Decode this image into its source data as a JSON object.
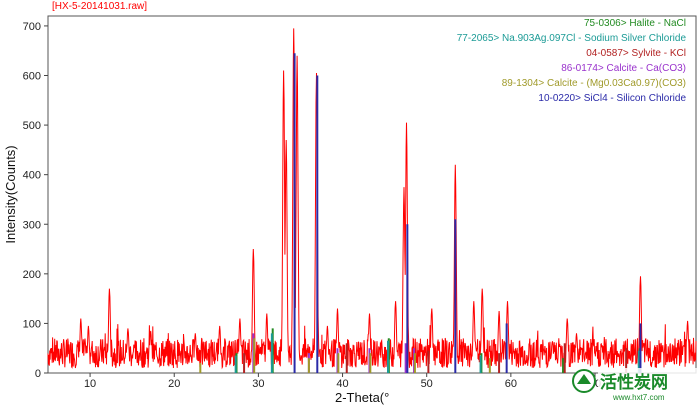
{
  "chart_data": {
    "type": "line",
    "title": "[HX-5-20141031.raw]",
    "xlabel": "2-Theta(°",
    "ylabel": "Intensity(Counts)",
    "xlim": [
      5,
      82
    ],
    "ylim": [
      0,
      720
    ],
    "xticks": [
      10,
      20,
      30,
      40,
      50,
      60,
      70
    ],
    "yticks": [
      0,
      100,
      200,
      300,
      400,
      500,
      600,
      700
    ],
    "grid": false,
    "legend_position": "top-right",
    "series": [
      {
        "color": "#ff0000",
        "baseline": 40,
        "peaks": [
          {
            "x": 8.9,
            "y": 110
          },
          {
            "x": 9.8,
            "y": 95
          },
          {
            "x": 12.3,
            "y": 170
          },
          {
            "x": 14.5,
            "y": 90
          },
          {
            "x": 17.2,
            "y": 85
          },
          {
            "x": 22.5,
            "y": 80
          },
          {
            "x": 25.4,
            "y": 95
          },
          {
            "x": 27.8,
            "y": 110
          },
          {
            "x": 29.4,
            "y": 250
          },
          {
            "x": 31.0,
            "y": 120
          },
          {
            "x": 33.0,
            "y": 610
          },
          {
            "x": 33.3,
            "y": 470
          },
          {
            "x": 34.2,
            "y": 695
          },
          {
            "x": 34.6,
            "y": 640
          },
          {
            "x": 36.9,
            "y": 605
          },
          {
            "x": 38.2,
            "y": 95
          },
          {
            "x": 39.4,
            "y": 130
          },
          {
            "x": 43.2,
            "y": 120
          },
          {
            "x": 46.3,
            "y": 145
          },
          {
            "x": 47.3,
            "y": 375
          },
          {
            "x": 47.6,
            "y": 505
          },
          {
            "x": 50.6,
            "y": 130
          },
          {
            "x": 53.4,
            "y": 420
          },
          {
            "x": 55.6,
            "y": 145
          },
          {
            "x": 56.6,
            "y": 170
          },
          {
            "x": 58.6,
            "y": 125
          },
          {
            "x": 59.6,
            "y": 145
          },
          {
            "x": 66.7,
            "y": 110
          },
          {
            "x": 67.8,
            "y": 80
          },
          {
            "x": 75.4,
            "y": 195
          },
          {
            "x": 81.0,
            "y": 105
          }
        ]
      }
    ],
    "reference_patterns": [
      {
        "label": "75-0306> Halite - NaCl",
        "color": "#228b22",
        "sticks": [
          {
            "x": 27.4,
            "y": 40
          },
          {
            "x": 31.7,
            "y": 90
          },
          {
            "x": 45.5,
            "y": 70
          },
          {
            "x": 56.5,
            "y": 40
          },
          {
            "x": 66.2,
            "y": 30
          },
          {
            "x": 75.3,
            "y": 50
          }
        ]
      },
      {
        "label": "77-2065> Na.903Ag.097Cl - Sodium Silver Chloride",
        "color": "#1c9b96",
        "sticks": [
          {
            "x": 27.3,
            "y": 35
          },
          {
            "x": 31.6,
            "y": 80
          },
          {
            "x": 45.4,
            "y": 65
          },
          {
            "x": 56.4,
            "y": 35
          },
          {
            "x": 75.2,
            "y": 45
          }
        ]
      },
      {
        "label": "04-0587> Sylvite - KCl",
        "color": "#b22222",
        "sticks": [
          {
            "x": 28.3,
            "y": 40
          },
          {
            "x": 40.5,
            "y": 60
          },
          {
            "x": 50.2,
            "y": 45
          },
          {
            "x": 58.6,
            "y": 40
          },
          {
            "x": 66.4,
            "y": 60
          },
          {
            "x": 73.7,
            "y": 50
          }
        ]
      },
      {
        "label": "86-0174> Calcite - Ca(CO3)",
        "color": "#9932cc",
        "sticks": [
          {
            "x": 29.4,
            "y": 80
          },
          {
            "x": 36.0,
            "y": 40
          },
          {
            "x": 39.4,
            "y": 50
          },
          {
            "x": 43.2,
            "y": 50
          },
          {
            "x": 47.5,
            "y": 60
          },
          {
            "x": 48.5,
            "y": 50
          }
        ]
      },
      {
        "label": "89-1304> Calcite - (Mg0.03Ca0.97)(CO3)",
        "color": "#a09a2a",
        "sticks": [
          {
            "x": 23.1,
            "y": 20
          },
          {
            "x": 29.5,
            "y": 70
          },
          {
            "x": 36.0,
            "y": 30
          },
          {
            "x": 39.5,
            "y": 40
          },
          {
            "x": 43.3,
            "y": 40
          },
          {
            "x": 48.6,
            "y": 40
          },
          {
            "x": 57.5,
            "y": 30
          }
        ]
      },
      {
        "label": "10-0220> SiCl4 - Silicon Chloride",
        "color": "#2a2aa8",
        "sticks": [
          {
            "x": 34.3,
            "y": 645
          },
          {
            "x": 37.0,
            "y": 600
          },
          {
            "x": 47.7,
            "y": 300
          },
          {
            "x": 53.4,
            "y": 310
          },
          {
            "x": 59.5,
            "y": 100
          },
          {
            "x": 75.4,
            "y": 100
          }
        ]
      }
    ]
  },
  "watermark": {
    "text": "活性炭网",
    "url": "www.hxt7.com"
  }
}
